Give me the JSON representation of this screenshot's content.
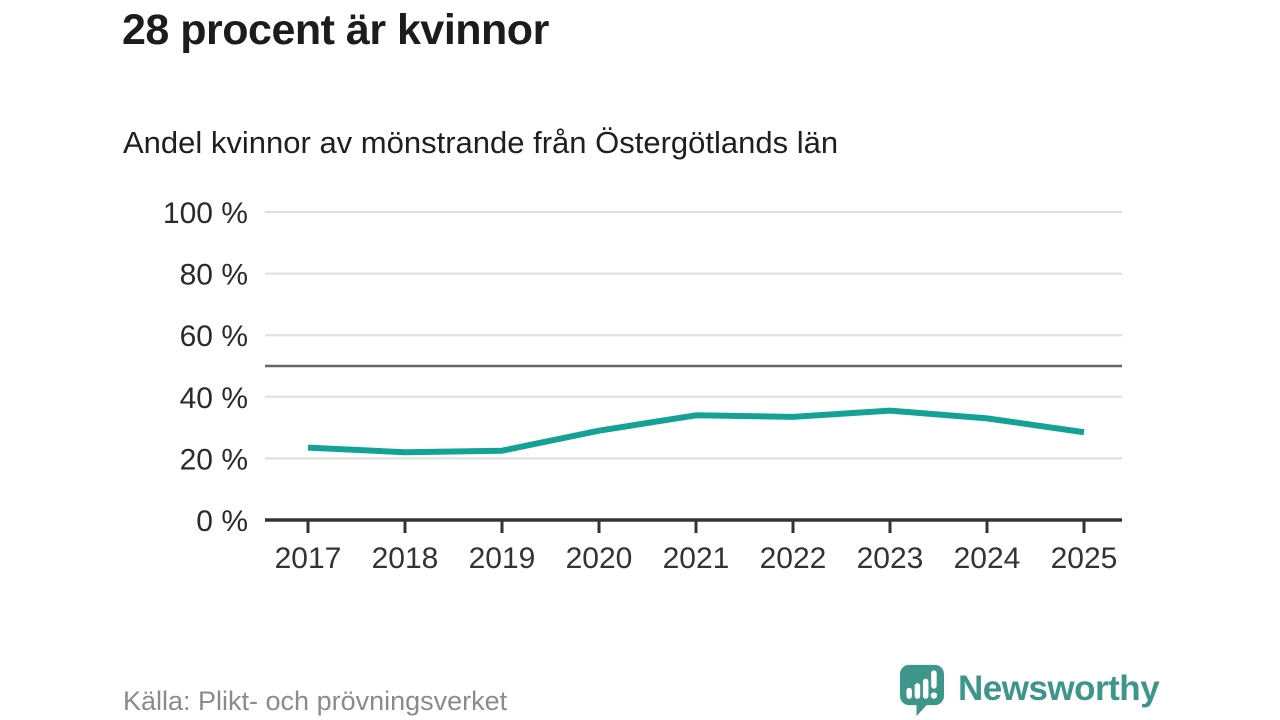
{
  "header": {
    "title": "28 procent är kvinnor",
    "subtitle": "Andel kvinnor av mönstrande från Östergötlands län"
  },
  "chart_data": {
    "type": "line",
    "title": "28 procent är kvinnor",
    "subtitle": "Andel kvinnor av mönstrande från Östergötlands län",
    "categories": [
      "2017",
      "2018",
      "2019",
      "2020",
      "2021",
      "2022",
      "2023",
      "2024",
      "2025"
    ],
    "series": [
      {
        "name": "Andel kvinnor av mönstrande",
        "values": [
          23.5,
          22,
          22.5,
          29,
          34,
          33.5,
          35.5,
          33,
          28.5
        ],
        "color": "#14a296"
      }
    ],
    "xlabel": "",
    "ylabel": "",
    "ylim": [
      0,
      100
    ],
    "y_tick_step": 20,
    "y_tick_suffix": " %",
    "y_tick_labels": [
      "0 %",
      "20 %",
      "40 %",
      "60 %",
      "80 %",
      "100 %"
    ],
    "grid": true,
    "gridline_color": "#dedede",
    "axis_color": "#333333",
    "tick_label_color": "#333333",
    "reference_line": {
      "value": 50,
      "color": "#666666"
    },
    "legend_position": "none"
  },
  "footer": {
    "source": "Källa: Plikt- och prövningsverket",
    "brand": "Newsworthy",
    "brand_color": "#3e968b",
    "logo_icon": "speech-bubble-bar-chart-icon"
  }
}
